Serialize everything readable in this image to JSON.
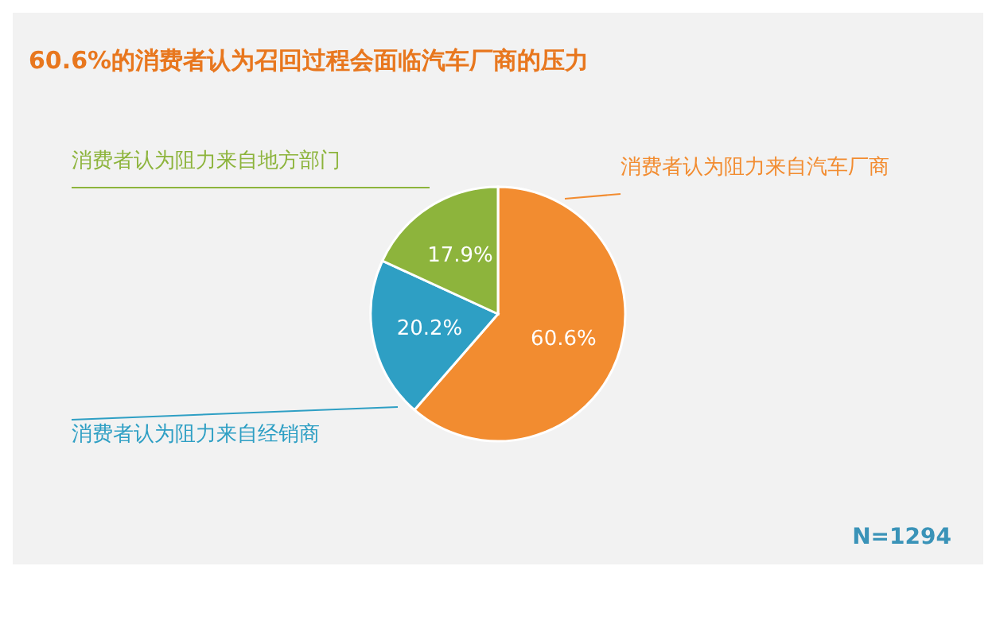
{
  "chart_data": {
    "type": "pie",
    "title": "60.6%的消费者认为召回过程会面临汽车厂商的压力",
    "categories": [
      "消费者认为阻力来自汽车厂商",
      "消费者认为阻力来自经销商",
      "消费者认为阻力来自地方部门"
    ],
    "values": [
      60.6,
      20.2,
      17.9
    ],
    "colors": [
      "#f28c30",
      "#2e9fc4",
      "#8db43c"
    ],
    "value_labels": [
      "60.6%",
      "20.2%",
      "17.9%"
    ],
    "annotations": [
      "N=1294"
    ]
  }
}
